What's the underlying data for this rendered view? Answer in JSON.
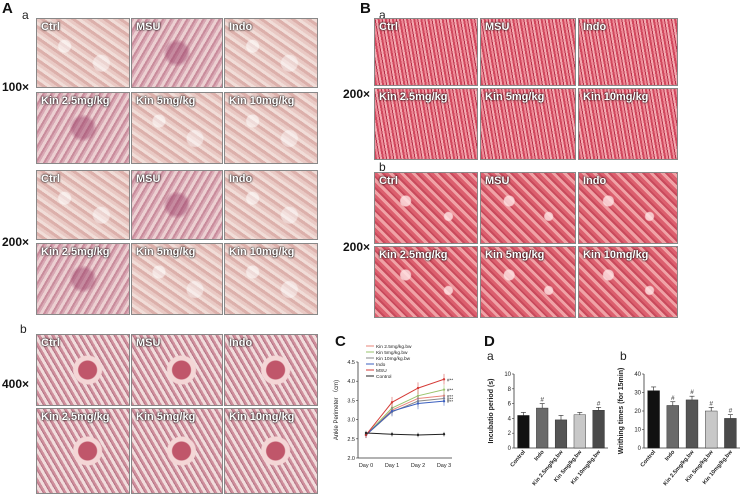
{
  "panelA": {
    "letter": "A",
    "sub_a": "a",
    "sub_b": "b",
    "mag_100": "100×",
    "mag_200": "200×",
    "mag_400": "400×",
    "row_top_labels": [
      "Ctrl",
      "MSU",
      "Indo"
    ],
    "row_bottom_labels": [
      "Kin 2.5mg/kg",
      "Kin 5mg/kg",
      "Kin 10mg/kg"
    ]
  },
  "panelB": {
    "letter": "B",
    "sub_a": "a",
    "sub_b": "b",
    "mag_200": "200×",
    "row_top_labels": [
      "Ctrl",
      "MSU",
      "Indo"
    ],
    "row_bottom_labels": [
      "Kin 2.5mg/kg",
      "Kin 5mg/kg",
      "Kin 10mg/kg"
    ]
  },
  "panelC": {
    "letter": "C"
  },
  "panelD": {
    "letter": "D",
    "sub_a": "a",
    "sub_b": "b"
  },
  "chart_data": [
    {
      "type": "line",
      "x": [
        "Day 0",
        "Day 1",
        "Day 2",
        "Day 3"
      ],
      "ylabel": "Ankle Perimeter （cm)",
      "ylim": [
        2.0,
        4.5
      ],
      "yticks": [
        "2.0",
        "2.5",
        "3.0",
        "3.5",
        "4.0",
        "4.5"
      ],
      "legend_position": "top-left",
      "series": [
        {
          "name": "Kin 2.5mg/kg.bw",
          "color": "#e8857a",
          "values": [
            2.6,
            3.25,
            3.55,
            3.62
          ],
          "err": [
            0.08,
            0.12,
            0.15,
            0.12
          ]
        },
        {
          "name": "Kin 5mg/kg.bw",
          "color": "#9ac46d",
          "values": [
            2.6,
            3.3,
            3.62,
            3.78
          ],
          "err": [
            0.08,
            0.12,
            0.15,
            0.12
          ]
        },
        {
          "name": "Kin 10mg/kg.bw",
          "color": "#8a8a8a",
          "values": [
            2.6,
            3.2,
            3.48,
            3.55
          ],
          "err": [
            0.08,
            0.12,
            0.15,
            0.12
          ]
        },
        {
          "name": "Indo",
          "color": "#3b5fbf",
          "values": [
            2.6,
            3.22,
            3.42,
            3.48
          ],
          "err": [
            0.08,
            0.12,
            0.15,
            0.12
          ]
        },
        {
          "name": "MSU",
          "color": "#d53a36",
          "values": [
            2.6,
            3.45,
            3.82,
            4.05
          ],
          "err": [
            0.08,
            0.14,
            0.15,
            0.14
          ]
        },
        {
          "name": "Control",
          "color": "#222222",
          "values": [
            2.65,
            2.62,
            2.6,
            2.62
          ],
          "err": [
            0.06,
            0.06,
            0.06,
            0.06
          ]
        }
      ],
      "annotations": [
        "#**",
        "#**",
        "#**",
        "#**",
        "#**"
      ]
    },
    {
      "type": "bar",
      "categories": [
        "Control",
        "Indo",
        "Kin 2.5mg/kg.bw",
        "Kin 5mg/kg.bw",
        "Kin 10mg/kg.bw"
      ],
      "values": [
        4.4,
        5.4,
        3.8,
        4.5,
        5.1
      ],
      "err": [
        0.4,
        0.6,
        0.6,
        0.3,
        0.4
      ],
      "colors": [
        "#111111",
        "#6a6a6a",
        "#555555",
        "#c8c8c8",
        "#4a4a4a"
      ],
      "ylabel": "Incubatio period (s)",
      "ylim": [
        0,
        10
      ],
      "yticks": [
        "0",
        "2",
        "4",
        "6",
        "8",
        "10"
      ],
      "marks": [
        "",
        "#",
        "",
        "",
        "#"
      ]
    },
    {
      "type": "bar",
      "categories": [
        "Control",
        "Indo",
        "Kin 2.5mg/kg.bw",
        "Kin 5mg/kg.bw",
        "Kin 10mg/kg.bw"
      ],
      "values": [
        31,
        23,
        26,
        20,
        16
      ],
      "err": [
        2,
        2,
        2,
        2,
        2
      ],
      "colors": [
        "#111111",
        "#6a6a6a",
        "#555555",
        "#c8c8c8",
        "#4a4a4a"
      ],
      "ylabel": "Writhing times (for 15min)",
      "ylim": [
        0,
        40
      ],
      "yticks": [
        "0",
        "10",
        "20",
        "30",
        "40"
      ],
      "marks": [
        "",
        "#",
        "#",
        "#",
        "#"
      ]
    }
  ]
}
